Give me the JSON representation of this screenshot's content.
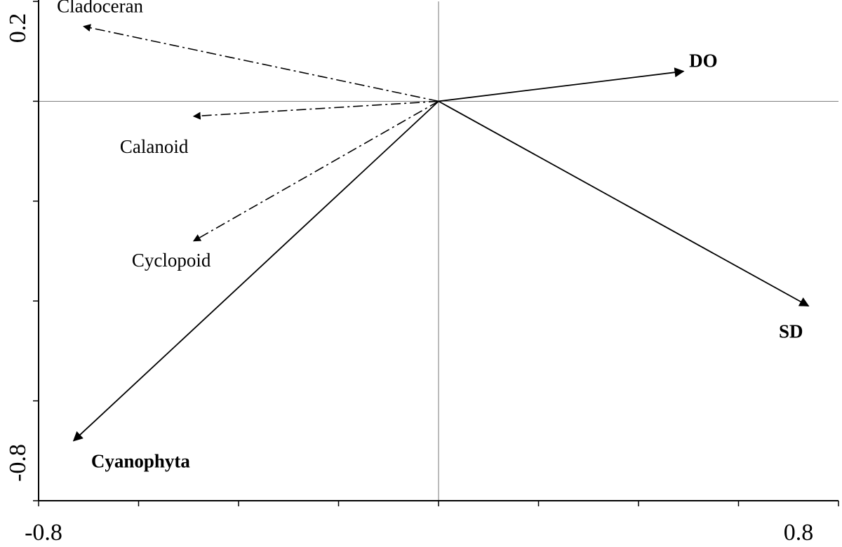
{
  "chart_data": {
    "type": "scatter",
    "subtype": "biplot",
    "title": "",
    "xlabel": "",
    "ylabel": "",
    "xlim": [
      -0.8,
      0.8
    ],
    "ylim": [
      -0.8,
      0.2
    ],
    "xticks": [
      -0.8,
      -0.6,
      -0.4,
      -0.2,
      0.0,
      0.2,
      0.4,
      0.6,
      0.8
    ],
    "yticks": [
      -0.8,
      -0.6,
      -0.4,
      -0.2,
      0.0,
      0.2
    ],
    "xtick_labels": [
      {
        "value": -0.8,
        "label": "-0.8"
      },
      {
        "value": 0.8,
        "label": "0.8"
      }
    ],
    "ytick_labels": [
      {
        "value": -0.8,
        "label": "-0.8"
      },
      {
        "value": 0.2,
        "label": "0.2"
      }
    ],
    "grid": false,
    "zero_lines": true,
    "vectors": [
      {
        "label": "DO",
        "x": 0.49,
        "y": 0.06,
        "style": "solid",
        "bold": true,
        "label_anchor": "right"
      },
      {
        "label": "SD",
        "x": 0.74,
        "y": -0.41,
        "style": "solid",
        "bold": true,
        "label_anchor": "below-left"
      },
      {
        "label": "Cyanophyta",
        "x": -0.73,
        "y": -0.68,
        "style": "solid",
        "bold": true,
        "label_anchor": "below-right"
      },
      {
        "label": "Cladoceran",
        "x": -0.71,
        "y": 0.15,
        "style": "dashdot",
        "bold": false,
        "label_anchor": "above-left"
      },
      {
        "label": "Calanoid",
        "x": -0.49,
        "y": -0.03,
        "style": "dashdot",
        "bold": false,
        "label_anchor": "below"
      },
      {
        "label": "Cyclopoid",
        "x": -0.49,
        "y": -0.28,
        "style": "dashdot",
        "bold": false,
        "label_anchor": "below"
      }
    ]
  }
}
